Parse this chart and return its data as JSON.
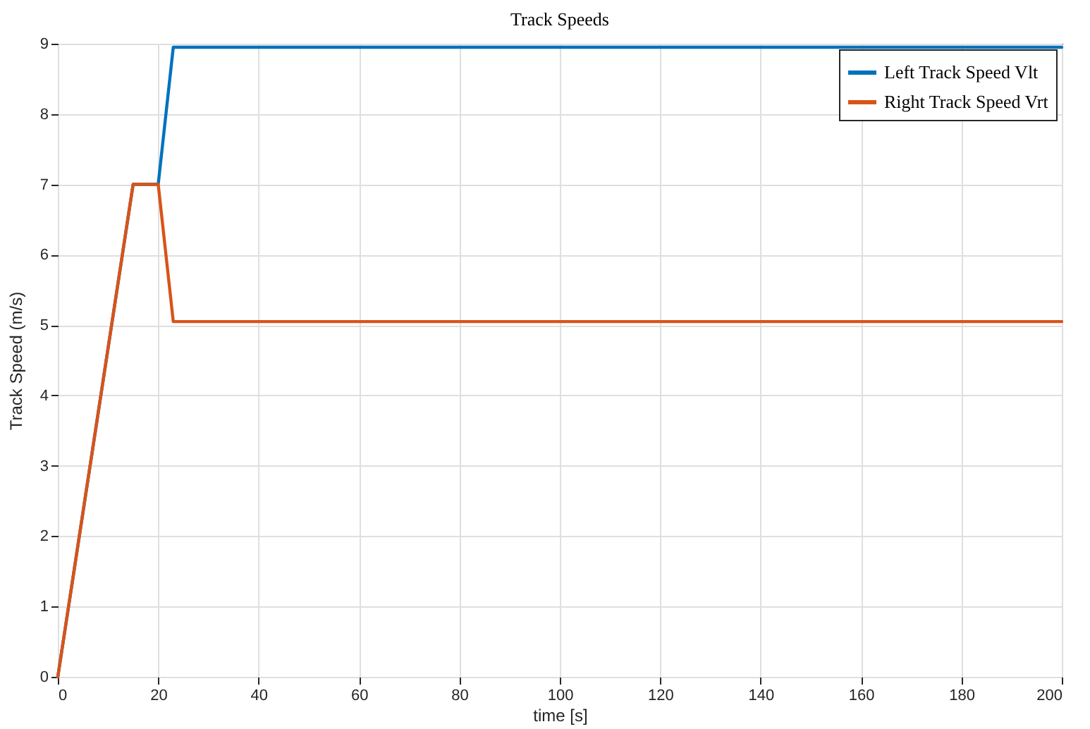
{
  "chart_data": {
    "type": "line",
    "title": "Track Speeds",
    "xlabel": "time [s]",
    "ylabel": "Track Speed (m/s)",
    "series": [
      {
        "name": "Left Track Speed Vlt",
        "color": "#0072bd",
        "x": [
          0,
          15,
          20,
          23,
          200
        ],
        "values": [
          0,
          7,
          7,
          8.95,
          8.95
        ]
      },
      {
        "name": "Right Track Speed Vrt",
        "color": "#d95319",
        "x": [
          0,
          15,
          20,
          23,
          200
        ],
        "values": [
          0,
          7,
          7,
          5.05,
          5.05
        ]
      }
    ],
    "xlim": [
      0,
      200
    ],
    "xticks": [
      0,
      20,
      40,
      60,
      80,
      100,
      120,
      140,
      160,
      180,
      200
    ],
    "ylim": [
      0,
      9
    ],
    "yticks": [
      0,
      1,
      2,
      3,
      4,
      5,
      6,
      7,
      8,
      9
    ],
    "grid": true,
    "legend": "top right",
    "marker": "none",
    "line_style": "solid"
  }
}
